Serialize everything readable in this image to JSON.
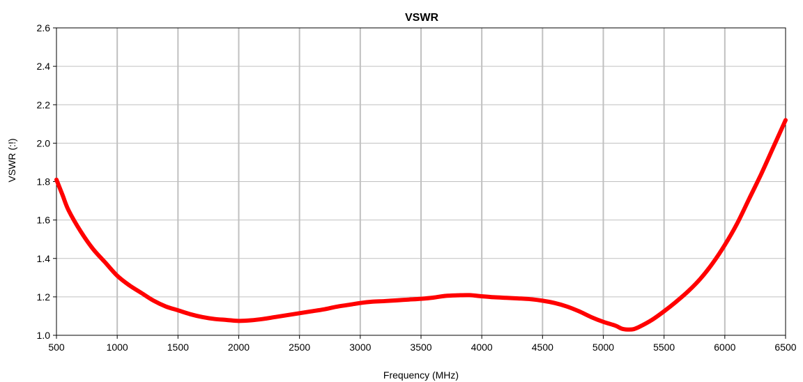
{
  "chart_data": {
    "type": "line",
    "title": "VSWR",
    "xlabel": "Frequency (MHz)",
    "ylabel": "VSWR (:!)",
    "xlim": [
      500,
      6500
    ],
    "ylim": [
      1.0,
      2.6
    ],
    "xticks": [
      "500",
      "1000",
      "1500",
      "2000",
      "2500",
      "3000",
      "3500",
      "4000",
      "4500",
      "5000",
      "5500",
      "6000",
      "6500"
    ],
    "yticks": [
      "1.0",
      "1.2",
      "1.4",
      "1.6",
      "1.8",
      "2.0",
      "2.2",
      "2.4",
      "2.6"
    ],
    "grid": true,
    "series": [
      {
        "color": "#ff0000",
        "x": [
          500,
          550,
          600,
          700,
          800,
          900,
          1000,
          1100,
          1200,
          1300,
          1400,
          1500,
          1600,
          1700,
          1800,
          1900,
          2000,
          2100,
          2200,
          2300,
          2400,
          2500,
          2600,
          2700,
          2800,
          2900,
          3000,
          3100,
          3200,
          3300,
          3400,
          3500,
          3600,
          3700,
          3800,
          3900,
          4000,
          4100,
          4200,
          4300,
          4400,
          4500,
          4600,
          4700,
          4800,
          4900,
          5000,
          5100,
          5150,
          5200,
          5250,
          5300,
          5400,
          5500,
          5600,
          5700,
          5800,
          5900,
          6000,
          6100,
          6200,
          6300,
          6400,
          6500
        ],
        "y": [
          1.81,
          1.73,
          1.65,
          1.54,
          1.45,
          1.38,
          1.31,
          1.26,
          1.22,
          1.18,
          1.15,
          1.13,
          1.11,
          1.095,
          1.085,
          1.08,
          1.075,
          1.078,
          1.085,
          1.095,
          1.105,
          1.115,
          1.125,
          1.135,
          1.148,
          1.158,
          1.168,
          1.175,
          1.178,
          1.182,
          1.186,
          1.19,
          1.196,
          1.205,
          1.208,
          1.209,
          1.203,
          1.198,
          1.195,
          1.192,
          1.188,
          1.18,
          1.168,
          1.15,
          1.125,
          1.095,
          1.07,
          1.05,
          1.035,
          1.03,
          1.032,
          1.045,
          1.08,
          1.125,
          1.175,
          1.23,
          1.295,
          1.375,
          1.47,
          1.58,
          1.71,
          1.84,
          1.98,
          2.12
        ]
      }
    ]
  }
}
